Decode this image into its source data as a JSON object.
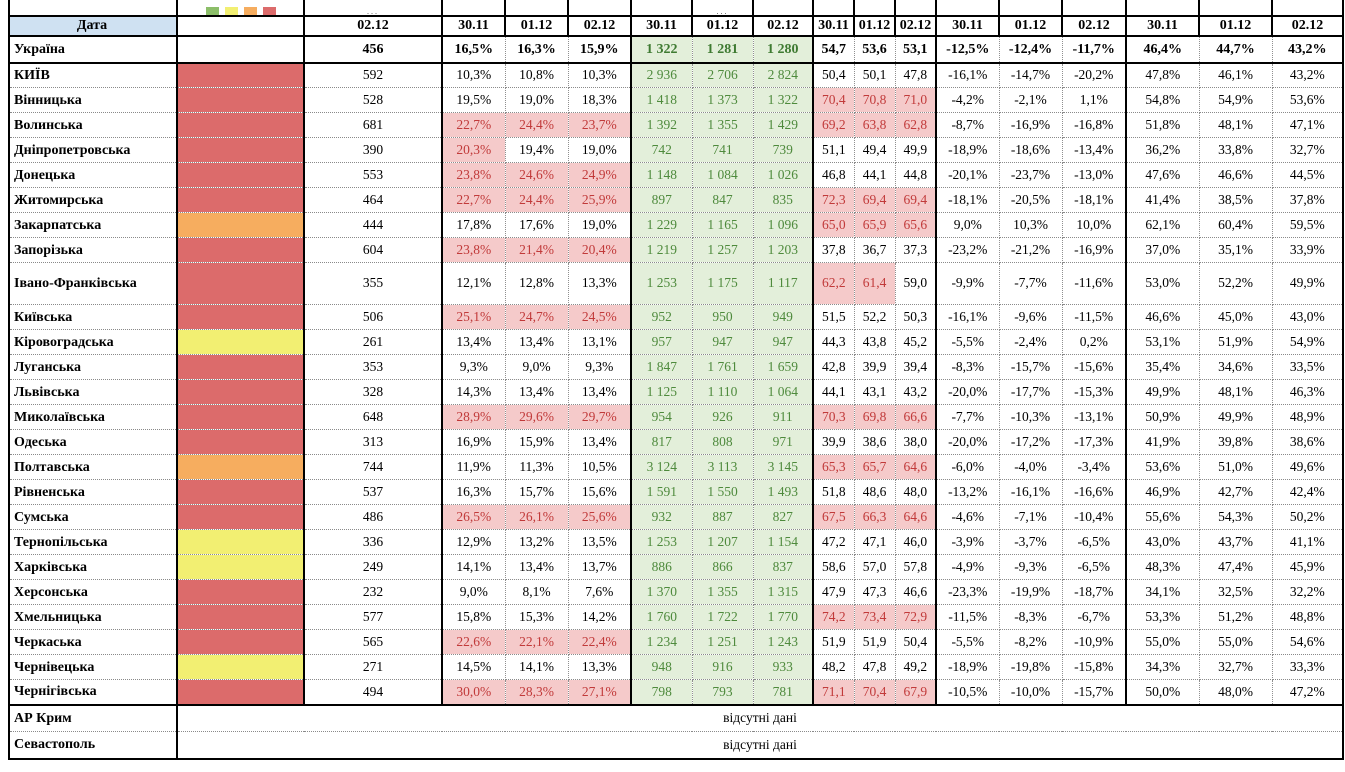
{
  "table": {
    "date_label": "Дата",
    "single_date": "02.12",
    "dates": [
      "30.11",
      "01.12",
      "02.12"
    ],
    "missing_data_label": "відсутні дані",
    "clipped_fragments": [
      "...",
      "..."
    ],
    "legend_colors": [
      "#8CBE69",
      "#F2EF72",
      "#F6AD5F",
      "#DC6B6B"
    ],
    "legend_names": [
      "green",
      "yellow",
      "orange",
      "red"
    ],
    "status_colors": {
      "red": "#DC6B6B",
      "orange": "#F6AD5F",
      "yellow": "#F2EF72"
    },
    "highlight_colors": {
      "alert_bg": "#F5CACA",
      "alert_text": "#C13A3A",
      "good_bg": "#E3EFDA",
      "good_text": "#4E8A3C",
      "header_bg": "#CFE1F2"
    },
    "highlight_rules": {
      "pct_min": 20,
      "occ_min": 60
    },
    "ukraine": {
      "name": "Україна",
      "count": "456",
      "pct": [
        "16,5%",
        "16,3%",
        "15,9%"
      ],
      "beds": [
        "1 322",
        "1 281",
        "1 280"
      ],
      "occ": [
        "54,7",
        "53,6",
        "53,1"
      ],
      "delta": [
        "-12,5%",
        "-12,4%",
        "-11,7%"
      ],
      "share": [
        "46,4%",
        "44,7%",
        "43,2%"
      ]
    },
    "regions": [
      {
        "name": "КИЇВ",
        "status": "red",
        "count": "592",
        "pct": [
          "10,3%",
          "10,8%",
          "10,3%"
        ],
        "beds": [
          "2 936",
          "2 706",
          "2 824"
        ],
        "occ": [
          "50,4",
          "50,1",
          "47,8"
        ],
        "delta": [
          "-16,1%",
          "-14,7%",
          "-20,2%"
        ],
        "share": [
          "47,8%",
          "46,1%",
          "43,2%"
        ]
      },
      {
        "name": "Вінницька",
        "status": "red",
        "count": "528",
        "pct": [
          "19,5%",
          "19,0%",
          "18,3%"
        ],
        "beds": [
          "1 418",
          "1 373",
          "1 322"
        ],
        "occ": [
          "70,4",
          "70,8",
          "71,0"
        ],
        "delta": [
          "-4,2%",
          "-2,1%",
          "1,1%"
        ],
        "share": [
          "54,8%",
          "54,9%",
          "53,6%"
        ]
      },
      {
        "name": "Волинська",
        "status": "red",
        "count": "681",
        "pct": [
          "22,7%",
          "24,4%",
          "23,7%"
        ],
        "beds": [
          "1 392",
          "1 355",
          "1 429"
        ],
        "occ": [
          "69,2",
          "63,8",
          "62,8"
        ],
        "delta": [
          "-8,7%",
          "-16,9%",
          "-16,8%"
        ],
        "share": [
          "51,8%",
          "48,1%",
          "47,1%"
        ]
      },
      {
        "name": "Дніпропетровська",
        "status": "red",
        "count": "390",
        "pct": [
          "20,3%",
          "19,4%",
          "19,0%"
        ],
        "beds": [
          "742",
          "741",
          "739"
        ],
        "occ": [
          "51,1",
          "49,4",
          "49,9"
        ],
        "delta": [
          "-18,9%",
          "-18,6%",
          "-13,4%"
        ],
        "share": [
          "36,2%",
          "33,8%",
          "32,7%"
        ]
      },
      {
        "name": "Донецька",
        "status": "red",
        "count": "553",
        "pct": [
          "23,8%",
          "24,6%",
          "24,9%"
        ],
        "beds": [
          "1 148",
          "1 084",
          "1 026"
        ],
        "occ": [
          "46,8",
          "44,1",
          "44,8"
        ],
        "delta": [
          "-20,1%",
          "-23,7%",
          "-13,0%"
        ],
        "share": [
          "47,6%",
          "46,6%",
          "44,5%"
        ]
      },
      {
        "name": "Житомирська",
        "status": "red",
        "count": "464",
        "pct": [
          "22,7%",
          "24,4%",
          "25,9%"
        ],
        "beds": [
          "897",
          "847",
          "835"
        ],
        "occ": [
          "72,3",
          "69,4",
          "69,4"
        ],
        "delta": [
          "-18,1%",
          "-20,5%",
          "-18,1%"
        ],
        "share": [
          "41,4%",
          "38,5%",
          "37,8%"
        ]
      },
      {
        "name": "Закарпатська",
        "status": "orange",
        "count": "444",
        "pct": [
          "17,8%",
          "17,6%",
          "19,0%"
        ],
        "beds": [
          "1 229",
          "1 165",
          "1 096"
        ],
        "occ": [
          "65,0",
          "65,9",
          "65,6"
        ],
        "delta": [
          "9,0%",
          "10,3%",
          "10,0%"
        ],
        "share": [
          "62,1%",
          "60,4%",
          "59,5%"
        ]
      },
      {
        "name": "Запорізька",
        "status": "red",
        "count": "604",
        "pct": [
          "23,8%",
          "21,4%",
          "20,4%"
        ],
        "beds": [
          "1 219",
          "1 257",
          "1 203"
        ],
        "occ": [
          "37,8",
          "36,7",
          "37,3"
        ],
        "delta": [
          "-23,2%",
          "-21,2%",
          "-16,9%"
        ],
        "share": [
          "37,0%",
          "35,1%",
          "33,9%"
        ]
      },
      {
        "name": "Івано-Франківська",
        "status": "red",
        "count": "355",
        "pct": [
          "12,1%",
          "12,8%",
          "13,3%"
        ],
        "beds": [
          "1 253",
          "1 175",
          "1 117"
        ],
        "occ": [
          "62,2",
          "61,4",
          "59,0"
        ],
        "delta": [
          "-9,9%",
          "-7,7%",
          "-11,6%"
        ],
        "share": [
          "53,0%",
          "52,2%",
          "49,9%"
        ]
      },
      {
        "name": "Київська",
        "status": "red",
        "count": "506",
        "pct": [
          "25,1%",
          "24,7%",
          "24,5%"
        ],
        "beds": [
          "952",
          "950",
          "949"
        ],
        "occ": [
          "51,5",
          "52,2",
          "50,3"
        ],
        "delta": [
          "-16,1%",
          "-9,6%",
          "-11,5%"
        ],
        "share": [
          "46,6%",
          "45,0%",
          "43,0%"
        ]
      },
      {
        "name": "Кіровоградська",
        "status": "yellow",
        "count": "261",
        "pct": [
          "13,4%",
          "13,4%",
          "13,1%"
        ],
        "beds": [
          "957",
          "947",
          "947"
        ],
        "occ": [
          "44,3",
          "43,8",
          "45,2"
        ],
        "delta": [
          "-5,5%",
          "-2,4%",
          "0,2%"
        ],
        "share": [
          "53,1%",
          "51,9%",
          "54,9%"
        ]
      },
      {
        "name": "Луганська",
        "status": "red",
        "count": "353",
        "pct": [
          "9,3%",
          "9,0%",
          "9,3%"
        ],
        "beds": [
          "1 847",
          "1 761",
          "1 659"
        ],
        "occ": [
          "42,8",
          "39,9",
          "39,4"
        ],
        "delta": [
          "-8,3%",
          "-15,7%",
          "-15,6%"
        ],
        "share": [
          "35,4%",
          "34,6%",
          "33,5%"
        ]
      },
      {
        "name": "Львівська",
        "status": "red",
        "count": "328",
        "pct": [
          "14,3%",
          "13,4%",
          "13,4%"
        ],
        "beds": [
          "1 125",
          "1 110",
          "1 064"
        ],
        "occ": [
          "44,1",
          "43,1",
          "43,2"
        ],
        "delta": [
          "-20,0%",
          "-17,7%",
          "-15,3%"
        ],
        "share": [
          "49,9%",
          "48,1%",
          "46,3%"
        ]
      },
      {
        "name": "Миколаївська",
        "status": "red",
        "count": "648",
        "pct": [
          "28,9%",
          "29,6%",
          "29,7%"
        ],
        "beds": [
          "954",
          "926",
          "911"
        ],
        "occ": [
          "70,3",
          "69,8",
          "66,6"
        ],
        "delta": [
          "-7,7%",
          "-10,3%",
          "-13,1%"
        ],
        "share": [
          "50,9%",
          "49,9%",
          "48,9%"
        ]
      },
      {
        "name": "Одеська",
        "status": "red",
        "count": "313",
        "pct": [
          "16,9%",
          "15,9%",
          "13,4%"
        ],
        "beds": [
          "817",
          "808",
          "971"
        ],
        "occ": [
          "39,9",
          "38,6",
          "38,0"
        ],
        "delta": [
          "-20,0%",
          "-17,2%",
          "-17,3%"
        ],
        "share": [
          "41,9%",
          "39,8%",
          "38,6%"
        ]
      },
      {
        "name": "Полтавська",
        "status": "orange",
        "count": "744",
        "pct": [
          "11,9%",
          "11,3%",
          "10,5%"
        ],
        "beds": [
          "3 124",
          "3 113",
          "3 145"
        ],
        "occ": [
          "65,3",
          "65,7",
          "64,6"
        ],
        "delta": [
          "-6,0%",
          "-4,0%",
          "-3,4%"
        ],
        "share": [
          "53,6%",
          "51,0%",
          "49,6%"
        ]
      },
      {
        "name": "Рівненська",
        "status": "red",
        "count": "537",
        "pct": [
          "16,3%",
          "15,7%",
          "15,6%"
        ],
        "beds": [
          "1 591",
          "1 550",
          "1 493"
        ],
        "occ": [
          "51,8",
          "48,6",
          "48,0"
        ],
        "delta": [
          "-13,2%",
          "-16,1%",
          "-16,6%"
        ],
        "share": [
          "46,9%",
          "42,7%",
          "42,4%"
        ]
      },
      {
        "name": "Сумська",
        "status": "red",
        "count": "486",
        "pct": [
          "26,5%",
          "26,1%",
          "25,6%"
        ],
        "beds": [
          "932",
          "887",
          "827"
        ],
        "occ": [
          "67,5",
          "66,3",
          "64,6"
        ],
        "delta": [
          "-4,6%",
          "-7,1%",
          "-10,4%"
        ],
        "share": [
          "55,6%",
          "54,3%",
          "50,2%"
        ]
      },
      {
        "name": "Тернопільська",
        "status": "yellow",
        "count": "336",
        "pct": [
          "12,9%",
          "13,2%",
          "13,5%"
        ],
        "beds": [
          "1 253",
          "1 207",
          "1 154"
        ],
        "occ": [
          "47,2",
          "47,1",
          "46,0"
        ],
        "delta": [
          "-3,9%",
          "-3,7%",
          "-6,5%"
        ],
        "share": [
          "43,0%",
          "43,7%",
          "41,1%"
        ]
      },
      {
        "name": "Харківська",
        "status": "yellow",
        "count": "249",
        "pct": [
          "14,1%",
          "13,4%",
          "13,7%"
        ],
        "beds": [
          "886",
          "866",
          "837"
        ],
        "occ": [
          "58,6",
          "57,0",
          "57,8"
        ],
        "delta": [
          "-4,9%",
          "-9,3%",
          "-6,5%"
        ],
        "share": [
          "48,3%",
          "47,4%",
          "45,9%"
        ]
      },
      {
        "name": "Херсонська",
        "status": "red",
        "count": "232",
        "pct": [
          "9,0%",
          "8,1%",
          "7,6%"
        ],
        "beds": [
          "1 370",
          "1 355",
          "1 315"
        ],
        "occ": [
          "47,9",
          "47,3",
          "46,6"
        ],
        "delta": [
          "-23,3%",
          "-19,9%",
          "-18,7%"
        ],
        "share": [
          "34,1%",
          "32,5%",
          "32,2%"
        ]
      },
      {
        "name": "Хмельницька",
        "status": "red",
        "count": "577",
        "pct": [
          "15,8%",
          "15,3%",
          "14,2%"
        ],
        "beds": [
          "1 760",
          "1 722",
          "1 770"
        ],
        "occ": [
          "74,2",
          "73,4",
          "72,9"
        ],
        "delta": [
          "-11,5%",
          "-8,3%",
          "-6,7%"
        ],
        "share": [
          "53,3%",
          "51,2%",
          "48,8%"
        ]
      },
      {
        "name": "Черкаська",
        "status": "red",
        "count": "565",
        "pct": [
          "22,6%",
          "22,1%",
          "22,4%"
        ],
        "beds": [
          "1 234",
          "1 251",
          "1 243"
        ],
        "occ": [
          "51,9",
          "51,9",
          "50,4"
        ],
        "delta": [
          "-5,5%",
          "-8,2%",
          "-10,9%"
        ],
        "share": [
          "55,0%",
          "55,0%",
          "54,6%"
        ]
      },
      {
        "name": "Чернівецька",
        "status": "yellow",
        "count": "271",
        "pct": [
          "14,5%",
          "14,1%",
          "13,3%"
        ],
        "beds": [
          "948",
          "916",
          "933"
        ],
        "occ": [
          "48,2",
          "47,8",
          "49,2"
        ],
        "delta": [
          "-18,9%",
          "-19,8%",
          "-15,8%"
        ],
        "share": [
          "34,3%",
          "32,7%",
          "33,3%"
        ]
      },
      {
        "name": "Чернігівська",
        "status": "red",
        "count": "494",
        "pct": [
          "30,0%",
          "28,3%",
          "27,1%"
        ],
        "beds": [
          "798",
          "793",
          "781"
        ],
        "occ": [
          "71,1",
          "70,4",
          "67,9"
        ],
        "delta": [
          "-10,5%",
          "-10,0%",
          "-15,7%"
        ],
        "share": [
          "50,0%",
          "48,0%",
          "47,2%"
        ]
      }
    ],
    "no_data_regions": [
      "АР Крим",
      "Севастополь"
    ]
  }
}
